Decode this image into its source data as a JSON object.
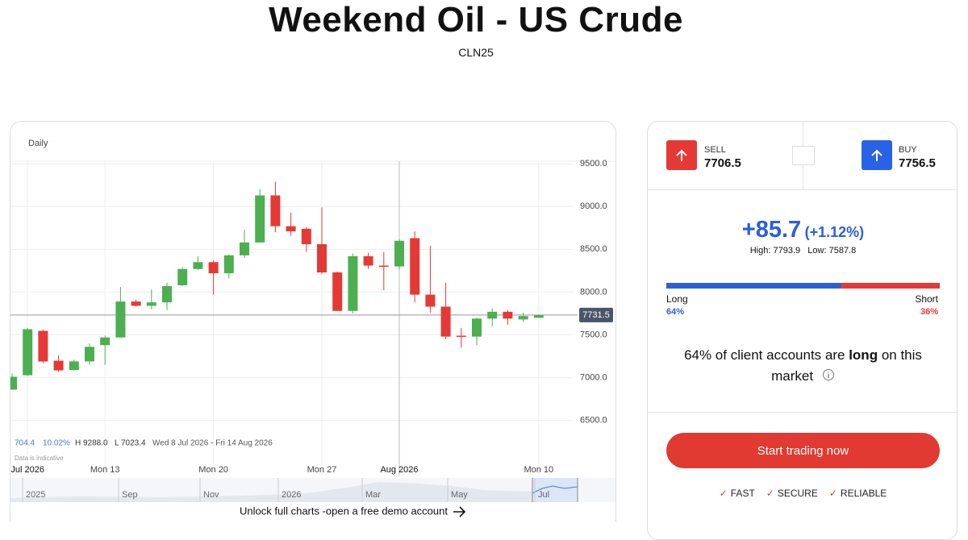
{
  "header": {
    "title": "Weekend Oil - US Crude",
    "subtitle": "CLN25"
  },
  "chart_data": {
    "type": "candlestick",
    "timeframe": "Daily",
    "categories": [
      null,
      "Jul 2026",
      null,
      null,
      null,
      null,
      "Mon 13",
      null,
      null,
      null,
      null,
      null,
      null,
      "Mon 20",
      null,
      null,
      null,
      null,
      null,
      null,
      "Mon 27",
      null,
      null,
      null,
      null,
      "Aug 2026",
      null,
      null,
      null,
      null,
      null,
      null,
      null,
      null,
      "Mon 10"
    ],
    "open": [
      6860,
      7028,
      7547,
      7198,
      7090,
      7190,
      7380,
      7470,
      7890,
      7840,
      7880,
      8080,
      8270,
      8350,
      8220,
      8430,
      8580,
      9130,
      8770,
      8740,
      8560,
      8230,
      7780,
      8420,
      8310,
      8300,
      8630,
      7970,
      7830,
      7490,
      7480,
      7690,
      7770,
      7680,
      7700
    ],
    "high": [
      7050,
      7580,
      7560,
      7260,
      7210,
      7400,
      7490,
      8060,
      7910,
      8030,
      8110,
      8290,
      8420,
      8370,
      8440,
      8730,
      9200,
      9290,
      8930,
      8760,
      8990,
      8240,
      8450,
      8460,
      8470,
      8620,
      8710,
      8540,
      8110,
      7580,
      7700,
      7810,
      7790,
      7760,
      7740
    ],
    "low": [
      6860,
      7020,
      7170,
      7070,
      7080,
      7150,
      7150,
      7470,
      7830,
      7800,
      7790,
      8070,
      8260,
      7970,
      8160,
      8400,
      8580,
      8700,
      8660,
      8470,
      8210,
      7780,
      7750,
      8270,
      8020,
      8260,
      7880,
      7760,
      7450,
      7350,
      7380,
      7600,
      7620,
      7650,
      7700
    ],
    "close": [
      7010,
      7566,
      7189,
      7085,
      7190,
      7360,
      7470,
      7890,
      7840,
      7880,
      8070,
      8270,
      8350,
      8220,
      8430,
      8580,
      9130,
      8770,
      8710,
      8560,
      8230,
      7780,
      8420,
      8310,
      8300,
      8600,
      7970,
      7830,
      7480,
      7480,
      7690,
      7770,
      7690,
      7720,
      7730
    ],
    "up_color": "#4caf50",
    "down_color": "#e53935",
    "ylim": [
      6280,
      9530
    ],
    "yticks": [
      {
        "value": 6500,
        "label": "6500.0"
      },
      {
        "value": 7000,
        "label": "7000.0"
      },
      {
        "value": 7500,
        "label": "7500.0"
      },
      {
        "value": 8000,
        "label": "8000.0"
      },
      {
        "value": 8500,
        "label": "8500.0"
      },
      {
        "value": 9000,
        "label": "9000.0"
      },
      {
        "value": 9500,
        "label": "9500.0"
      }
    ],
    "grid": true,
    "last_price": 7731.5,
    "stats": {
      "change": 704.4,
      "change_pct": "10.02%",
      "high": "H 9288.0",
      "low": "L 7023.4",
      "range": "Wed 8 Jul 2026 - Fri 14 Aug 2026"
    },
    "note": "Data is indicative",
    "navigator_labels": [
      "2025",
      "Sep",
      "Nov",
      "2026",
      "Mar",
      "May",
      "Jul"
    ],
    "cta": "Unlock full charts -open a free demo account"
  },
  "panel": {
    "sell": {
      "label": "SELL",
      "price": 7706.5
    },
    "buy": {
      "label": "BUY",
      "price": 7756.5
    },
    "change": "+85.7",
    "change_pct": "(+1.12%)",
    "high_label": "High:",
    "high": 7793.9,
    "low_label": "Low:",
    "low": 7587.8,
    "sentiment": {
      "long_label": "Long",
      "short_label": "Short",
      "long": 64,
      "short": 36,
      "value_labels": [
        "64%",
        "36%"
      ],
      "long_color": "#2b5fd9",
      "short_color": "#e53935"
    },
    "summary": [
      "64% of client accounts are",
      "long",
      "on this",
      "market"
    ],
    "button": "Start trading now",
    "features": [
      "FAST",
      "SECURE",
      "RELIABLE"
    ]
  }
}
